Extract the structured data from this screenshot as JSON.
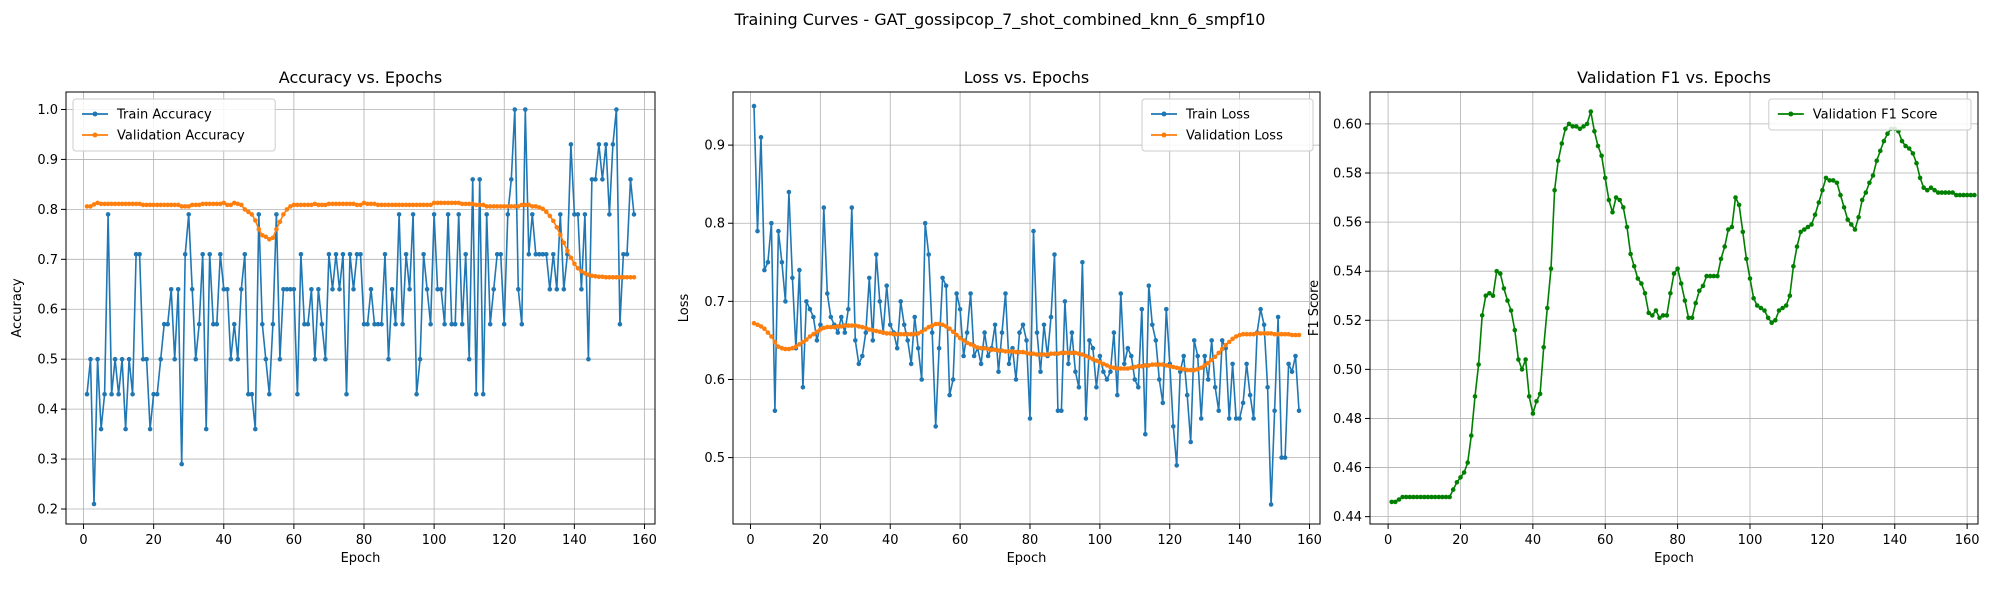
{
  "figure_title": "Training Curves - GAT_gossipcop_7_shot_combined_knn_6_smpf10",
  "colors": {
    "train": "#1f77b4",
    "val": "#ff7f0e",
    "f1": "#008000",
    "grid": "#b0b0b0"
  },
  "chart_data": [
    {
      "type": "line",
      "title": "Accuracy vs. Epochs",
      "xlabel": "Epoch",
      "ylabel": "Accuracy",
      "xlim": [
        -5,
        163
      ],
      "ylim": [
        0.17,
        1.035
      ],
      "xticks": [
        0,
        20,
        40,
        60,
        80,
        100,
        120,
        140,
        160
      ],
      "yticks": [
        0.2,
        0.3,
        0.4,
        0.5,
        0.6,
        0.7,
        0.8,
        0.9,
        1.0
      ],
      "tick_decimals": 1,
      "grid": true,
      "legend_position": "upper-left",
      "series": [
        {
          "name": "Train Accuracy",
          "color": "#1f77b4",
          "x_start": 1,
          "values": [
            0.43,
            0.5,
            0.21,
            0.5,
            0.36,
            0.43,
            0.79,
            0.43,
            0.5,
            0.43,
            0.5,
            0.36,
            0.5,
            0.43,
            0.71,
            0.71,
            0.5,
            0.5,
            0.36,
            0.43,
            0.43,
            0.5,
            0.57,
            0.57,
            0.64,
            0.5,
            0.64,
            0.29,
            0.71,
            0.79,
            0.64,
            0.5,
            0.57,
            0.71,
            0.36,
            0.71,
            0.57,
            0.57,
            0.71,
            0.64,
            0.64,
            0.5,
            0.57,
            0.5,
            0.64,
            0.71,
            0.43,
            0.43,
            0.36,
            0.79,
            0.57,
            0.5,
            0.43,
            0.57,
            0.79,
            0.5,
            0.64,
            0.64,
            0.64,
            0.64,
            0.43,
            0.71,
            0.57,
            0.57,
            0.64,
            0.5,
            0.64,
            0.57,
            0.5,
            0.71,
            0.64,
            0.71,
            0.64,
            0.71,
            0.43,
            0.71,
            0.64,
            0.71,
            0.71,
            0.57,
            0.57,
            0.64,
            0.57,
            0.57,
            0.57,
            0.71,
            0.5,
            0.64,
            0.57,
            0.79,
            0.57,
            0.71,
            0.64,
            0.79,
            0.43,
            0.5,
            0.71,
            0.64,
            0.57,
            0.79,
            0.64,
            0.64,
            0.57,
            0.79,
            0.57,
            0.57,
            0.79,
            0.57,
            0.71,
            0.5,
            0.86,
            0.43,
            0.86,
            0.43,
            0.79,
            0.57,
            0.64,
            0.71,
            0.71,
            0.57,
            0.79,
            0.86,
            1.0,
            0.64,
            0.57,
            1.0,
            0.71,
            0.79,
            0.71,
            0.71,
            0.71,
            0.71,
            0.64,
            0.71,
            0.64,
            0.79,
            0.64,
            0.71,
            0.93,
            0.79,
            0.79,
            0.64,
            0.79,
            0.5,
            0.86,
            0.86,
            0.93,
            0.86,
            0.93,
            0.79,
            0.93,
            1.0,
            0.57,
            0.71,
            0.71,
            0.86,
            0.79
          ]
        },
        {
          "name": "Validation Accuracy",
          "color": "#ff7f0e",
          "x_start": 1,
          "values": [
            0.806,
            0.806,
            0.81,
            0.813,
            0.811,
            0.811,
            0.811,
            0.811,
            0.811,
            0.811,
            0.811,
            0.811,
            0.811,
            0.811,
            0.811,
            0.811,
            0.809,
            0.809,
            0.809,
            0.809,
            0.809,
            0.809,
            0.809,
            0.809,
            0.809,
            0.809,
            0.809,
            0.806,
            0.806,
            0.806,
            0.809,
            0.809,
            0.809,
            0.811,
            0.811,
            0.811,
            0.811,
            0.811,
            0.811,
            0.813,
            0.809,
            0.809,
            0.813,
            0.811,
            0.809,
            0.8,
            0.795,
            0.79,
            0.778,
            0.76,
            0.748,
            0.745,
            0.74,
            0.743,
            0.76,
            0.775,
            0.79,
            0.8,
            0.806,
            0.809,
            0.809,
            0.809,
            0.809,
            0.809,
            0.809,
            0.811,
            0.809,
            0.809,
            0.809,
            0.811,
            0.811,
            0.811,
            0.811,
            0.811,
            0.811,
            0.811,
            0.811,
            0.809,
            0.809,
            0.813,
            0.811,
            0.811,
            0.811,
            0.809,
            0.809,
            0.809,
            0.809,
            0.809,
            0.809,
            0.809,
            0.809,
            0.809,
            0.809,
            0.809,
            0.809,
            0.809,
            0.809,
            0.809,
            0.809,
            0.813,
            0.813,
            0.813,
            0.813,
            0.813,
            0.813,
            0.813,
            0.813,
            0.811,
            0.811,
            0.811,
            0.811,
            0.809,
            0.809,
            0.809,
            0.806,
            0.806,
            0.806,
            0.806,
            0.806,
            0.806,
            0.806,
            0.806,
            0.806,
            0.806,
            0.809,
            0.809,
            0.809,
            0.806,
            0.806,
            0.804,
            0.801,
            0.795,
            0.787,
            0.777,
            0.764,
            0.749,
            0.733,
            0.717,
            0.703,
            0.691,
            0.682,
            0.676,
            0.672,
            0.669,
            0.667,
            0.666,
            0.665,
            0.665,
            0.664,
            0.664,
            0.664,
            0.664,
            0.664,
            0.664,
            0.664,
            0.664,
            0.664
          ]
        }
      ]
    },
    {
      "type": "line",
      "title": "Loss vs. Epochs",
      "xlabel": "Epoch",
      "ylabel": "Loss",
      "xlim": [
        -5,
        163
      ],
      "ylim": [
        0.415,
        0.968
      ],
      "xticks": [
        0,
        20,
        40,
        60,
        80,
        100,
        120,
        140,
        160
      ],
      "yticks": [
        0.5,
        0.6,
        0.7,
        0.8,
        0.9
      ],
      "tick_decimals": 1,
      "grid": true,
      "legend_position": "upper-right",
      "series": [
        {
          "name": "Train Loss",
          "color": "#1f77b4",
          "x_start": 1,
          "values": [
            0.95,
            0.79,
            0.91,
            0.74,
            0.75,
            0.8,
            0.56,
            0.79,
            0.75,
            0.7,
            0.84,
            0.73,
            0.64,
            0.74,
            0.59,
            0.7,
            0.69,
            0.68,
            0.65,
            0.67,
            0.82,
            0.71,
            0.68,
            0.67,
            0.66,
            0.68,
            0.66,
            0.69,
            0.82,
            0.65,
            0.62,
            0.63,
            0.66,
            0.73,
            0.65,
            0.76,
            0.7,
            0.66,
            0.72,
            0.67,
            0.66,
            0.64,
            0.7,
            0.67,
            0.65,
            0.62,
            0.68,
            0.64,
            0.6,
            0.8,
            0.76,
            0.66,
            0.54,
            0.64,
            0.73,
            0.72,
            0.58,
            0.6,
            0.71,
            0.69,
            0.63,
            0.66,
            0.71,
            0.63,
            0.64,
            0.62,
            0.66,
            0.63,
            0.64,
            0.67,
            0.61,
            0.66,
            0.71,
            0.62,
            0.64,
            0.6,
            0.66,
            0.67,
            0.65,
            0.55,
            0.79,
            0.66,
            0.61,
            0.67,
            0.63,
            0.68,
            0.76,
            0.56,
            0.56,
            0.7,
            0.62,
            0.66,
            0.61,
            0.59,
            0.75,
            0.55,
            0.65,
            0.64,
            0.59,
            0.63,
            0.61,
            0.6,
            0.61,
            0.66,
            0.58,
            0.71,
            0.62,
            0.64,
            0.63,
            0.6,
            0.59,
            0.69,
            0.53,
            0.72,
            0.67,
            0.65,
            0.6,
            0.57,
            0.69,
            0.62,
            0.54,
            0.49,
            0.61,
            0.63,
            0.58,
            0.52,
            0.65,
            0.63,
            0.55,
            0.63,
            0.6,
            0.65,
            0.59,
            0.56,
            0.65,
            0.64,
            0.55,
            0.62,
            0.55,
            0.55,
            0.57,
            0.62,
            0.58,
            0.55,
            0.66,
            0.69,
            0.67,
            0.59,
            0.44,
            0.56,
            0.68,
            0.5,
            0.5,
            0.62,
            0.61,
            0.63,
            0.56
          ]
        },
        {
          "name": "Validation Loss",
          "color": "#ff7f0e",
          "x_start": 1,
          "values": [
            0.672,
            0.67,
            0.668,
            0.665,
            0.66,
            0.655,
            0.648,
            0.642,
            0.64,
            0.639,
            0.639,
            0.64,
            0.642,
            0.645,
            0.648,
            0.651,
            0.655,
            0.658,
            0.661,
            0.664,
            0.666,
            0.667,
            0.667,
            0.667,
            0.668,
            0.668,
            0.669,
            0.669,
            0.669,
            0.669,
            0.668,
            0.667,
            0.666,
            0.664,
            0.663,
            0.662,
            0.661,
            0.66,
            0.659,
            0.659,
            0.658,
            0.658,
            0.658,
            0.658,
            0.658,
            0.658,
            0.658,
            0.659,
            0.661,
            0.664,
            0.667,
            0.669,
            0.671,
            0.671,
            0.67,
            0.668,
            0.665,
            0.661,
            0.657,
            0.653,
            0.65,
            0.647,
            0.645,
            0.643,
            0.641,
            0.64,
            0.64,
            0.639,
            0.638,
            0.638,
            0.637,
            0.637,
            0.636,
            0.636,
            0.636,
            0.635,
            0.635,
            0.635,
            0.634,
            0.633,
            0.633,
            0.632,
            0.632,
            0.632,
            0.632,
            0.633,
            0.633,
            0.633,
            0.634,
            0.634,
            0.634,
            0.634,
            0.634,
            0.633,
            0.632,
            0.63,
            0.628,
            0.626,
            0.624,
            0.622,
            0.62,
            0.618,
            0.616,
            0.615,
            0.614,
            0.614,
            0.614,
            0.614,
            0.615,
            0.616,
            0.617,
            0.617,
            0.618,
            0.618,
            0.619,
            0.619,
            0.619,
            0.619,
            0.618,
            0.617,
            0.616,
            0.615,
            0.614,
            0.613,
            0.612,
            0.612,
            0.612,
            0.613,
            0.615,
            0.618,
            0.621,
            0.625,
            0.629,
            0.634,
            0.639,
            0.644,
            0.648,
            0.652,
            0.655,
            0.657,
            0.658,
            0.658,
            0.658,
            0.658,
            0.659,
            0.659,
            0.659,
            0.659,
            0.659,
            0.658,
            0.658,
            0.658,
            0.658,
            0.658,
            0.657,
            0.657,
            0.657
          ]
        }
      ]
    },
    {
      "type": "line",
      "title": "Validation F1 vs. Epochs",
      "xlabel": "Epoch",
      "ylabel": "F1 Score",
      "xlim": [
        -5,
        163
      ],
      "ylim": [
        0.437,
        0.613
      ],
      "xticks": [
        0,
        20,
        40,
        60,
        80,
        100,
        120,
        140,
        160
      ],
      "yticks": [
        0.44,
        0.46,
        0.48,
        0.5,
        0.52,
        0.54,
        0.56,
        0.58,
        0.6
      ],
      "tick_decimals": 2,
      "grid": true,
      "legend_position": "upper-right",
      "series": [
        {
          "name": "Validation F1 Score",
          "color": "#008000",
          "x_start": 1,
          "values": [
            0.446,
            0.446,
            0.447,
            0.448,
            0.448,
            0.448,
            0.448,
            0.448,
            0.448,
            0.448,
            0.448,
            0.448,
            0.448,
            0.448,
            0.448,
            0.448,
            0.448,
            0.451,
            0.454,
            0.456,
            0.458,
            0.462,
            0.473,
            0.489,
            0.502,
            0.522,
            0.53,
            0.531,
            0.53,
            0.54,
            0.539,
            0.533,
            0.528,
            0.524,
            0.516,
            0.504,
            0.5,
            0.504,
            0.489,
            0.482,
            0.487,
            0.49,
            0.509,
            0.525,
            0.541,
            0.573,
            0.585,
            0.592,
            0.598,
            0.6,
            0.599,
            0.599,
            0.598,
            0.599,
            0.6,
            0.605,
            0.597,
            0.591,
            0.587,
            0.578,
            0.569,
            0.564,
            0.57,
            0.569,
            0.566,
            0.558,
            0.547,
            0.542,
            0.537,
            0.535,
            0.531,
            0.523,
            0.522,
            0.524,
            0.521,
            0.522,
            0.522,
            0.531,
            0.539,
            0.541,
            0.535,
            0.528,
            0.521,
            0.521,
            0.527,
            0.532,
            0.534,
            0.538,
            0.538,
            0.538,
            0.538,
            0.545,
            0.55,
            0.557,
            0.558,
            0.57,
            0.567,
            0.556,
            0.545,
            0.537,
            0.529,
            0.526,
            0.525,
            0.524,
            0.521,
            0.519,
            0.52,
            0.524,
            0.525,
            0.526,
            0.53,
            0.542,
            0.55,
            0.556,
            0.557,
            0.558,
            0.559,
            0.563,
            0.568,
            0.573,
            0.578,
            0.577,
            0.577,
            0.576,
            0.571,
            0.566,
            0.561,
            0.559,
            0.557,
            0.562,
            0.569,
            0.572,
            0.576,
            0.579,
            0.585,
            0.589,
            0.593,
            0.596,
            0.598,
            0.598,
            0.597,
            0.593,
            0.591,
            0.59,
            0.588,
            0.584,
            0.578,
            0.574,
            0.573,
            0.574,
            0.573,
            0.572,
            0.572,
            0.572,
            0.572,
            0.572,
            0.571,
            0.571,
            0.571,
            0.571,
            0.571,
            0.571
          ]
        }
      ]
    }
  ]
}
